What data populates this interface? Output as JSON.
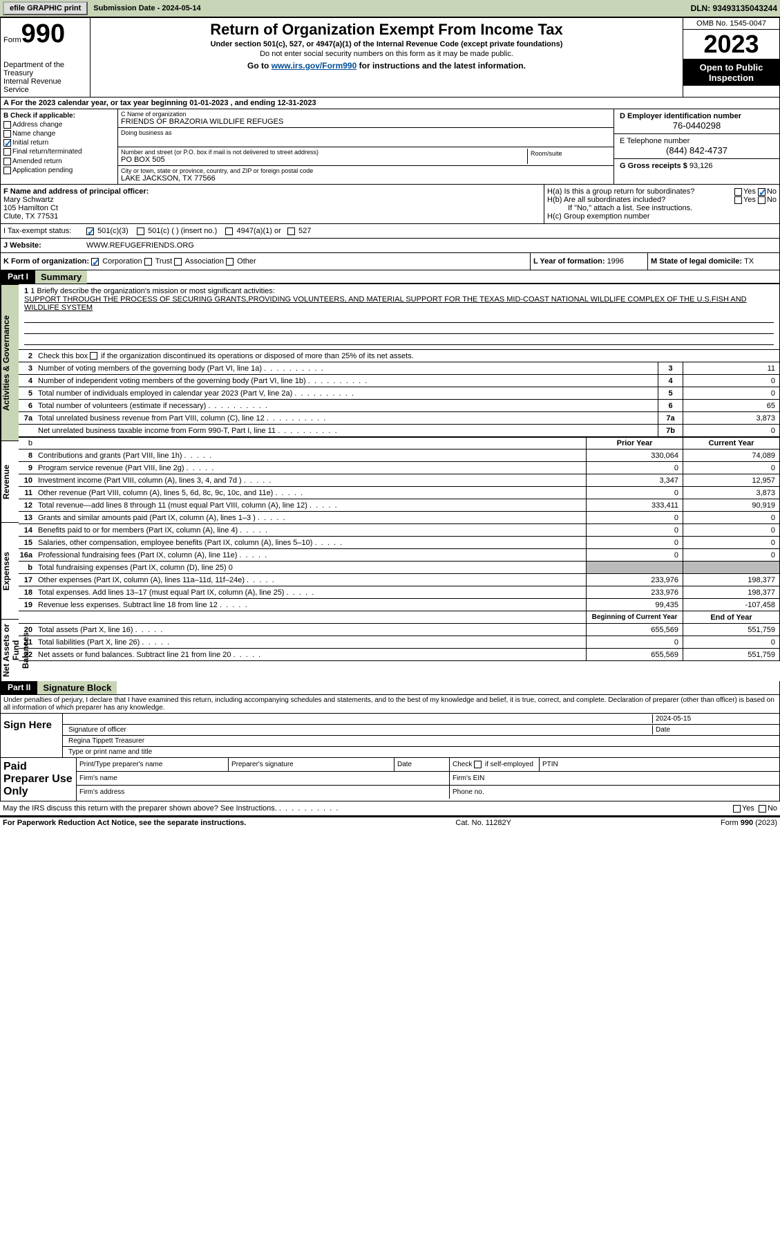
{
  "topbar": {
    "btn1": "efile GRAPHIC print",
    "submission_label": "Submission Date - 2024-05-14",
    "dln": "DLN: 93493135043244"
  },
  "header": {
    "form_word": "Form",
    "form_num": "990",
    "title": "Return of Organization Exempt From Income Tax",
    "subtitle": "Under section 501(c), 527, or 4947(a)(1) of the Internal Revenue Code (except private foundations)",
    "note": "Do not enter social security numbers on this form as it may be made public.",
    "goto_pre": "Go to ",
    "goto_link": "www.irs.gov/Form990",
    "goto_post": " for instructions and the latest information.",
    "dept": "Department of the Treasury\nInternal Revenue Service",
    "omb": "OMB No. 1545-0047",
    "year": "2023",
    "open": "Open to Public Inspection"
  },
  "line_a": "A For the 2023 calendar year, or tax year beginning 01-01-2023    , and ending 12-31-2023",
  "box_b": {
    "title": "B Check if applicable:",
    "items": [
      {
        "label": "Address change",
        "checked": false
      },
      {
        "label": "Name change",
        "checked": false
      },
      {
        "label": "Initial return",
        "checked": true
      },
      {
        "label": "Final return/terminated",
        "checked": false
      },
      {
        "label": "Amended return",
        "checked": false
      },
      {
        "label": "Application pending",
        "checked": false
      }
    ]
  },
  "box_c": {
    "name_label": "C Name of organization",
    "name": "FRIENDS OF BRAZORIA WILDLIFE REFUGES",
    "dba_label": "Doing business as",
    "addr_label": "Number and street (or P.O. box if mail is not delivered to street address)",
    "addr": "PO BOX 505",
    "room_label": "Room/suite",
    "city_label": "City or town, state or province, country, and ZIP or foreign postal code",
    "city": "LAKE JACKSON, TX  77566"
  },
  "box_d": {
    "label": "D Employer identification number",
    "val": "76-0440298"
  },
  "box_e": {
    "label": "E Telephone number",
    "val": "(844) 842-4737"
  },
  "box_g": {
    "label": "G Gross receipts $ ",
    "val": "93,126"
  },
  "box_f": {
    "label": "F  Name and address of principal officer:",
    "name": "Mary Schwartz",
    "addr1": "105 Hamilton Ct",
    "addr2": "Clute, TX  77531"
  },
  "box_h": {
    "a": "H(a)  Is this a group return for subordinates?",
    "b": "H(b)  Are all subordinates included?",
    "b_note": "If \"No,\" attach a list. See instructions.",
    "c": "H(c)  Group exemption number"
  },
  "box_i": {
    "label": "I  Tax-exempt status:",
    "opts": [
      "501(c)(3)",
      "501(c) (  ) (insert no.)",
      "4947(a)(1) or",
      "527"
    ]
  },
  "box_j": {
    "label": "J  Website:",
    "val": "WWW.REFUGEFRIENDS.ORG"
  },
  "box_k": {
    "label": "K Form of organization:",
    "opts": [
      "Corporation",
      "Trust",
      "Association",
      "Other"
    ]
  },
  "box_l": {
    "label": "L Year of formation: ",
    "val": "1996"
  },
  "box_m": {
    "label": "M State of legal domicile: ",
    "val": "TX"
  },
  "yes": "Yes",
  "no": "No",
  "part1": {
    "hdr": "Part I",
    "title": "Summary",
    "sections": {
      "ag": "Activities & Governance",
      "rev": "Revenue",
      "exp": "Expenses",
      "net": "Net Assets or Fund Balances"
    },
    "mission_label": "1  Briefly describe the organization's mission or most significant activities:",
    "mission": "SUPPORT THROUGH THE PROCESS OF SECURING GRANTS,PROVIDING VOLUNTEERS, AND MATERIAL SUPPORT FOR THE TEXAS MID-COAST NATIONAL WILDLIFE COMPLEX OF THE U.S.FISH AND WILDLIFE SYSTEM",
    "line2": "Check this box        if the organization discontinued its operations or disposed of more than 25% of its net assets.",
    "lines_ag": [
      {
        "n": "3",
        "d": "Number of voting members of the governing body (Part VI, line 1a)",
        "c": "3",
        "v": "11"
      },
      {
        "n": "4",
        "d": "Number of independent voting members of the governing body (Part VI, line 1b)",
        "c": "4",
        "v": "0"
      },
      {
        "n": "5",
        "d": "Total number of individuals employed in calendar year 2023 (Part V, line 2a)",
        "c": "5",
        "v": "0"
      },
      {
        "n": "6",
        "d": "Total number of volunteers (estimate if necessary)",
        "c": "6",
        "v": "65"
      },
      {
        "n": "7a",
        "d": "Total unrelated business revenue from Part VIII, column (C), line 12",
        "c": "7a",
        "v": "3,873"
      },
      {
        "n": "",
        "d": "Net unrelated business taxable income from Form 990-T, Part I, line 11",
        "c": "7b",
        "v": "0"
      }
    ],
    "hdr_prior": "Prior Year",
    "hdr_curr": "Current Year",
    "lines_rev": [
      {
        "n": "8",
        "d": "Contributions and grants (Part VIII, line 1h)",
        "p": "330,064",
        "c": "74,089"
      },
      {
        "n": "9",
        "d": "Program service revenue (Part VIII, line 2g)",
        "p": "0",
        "c": "0"
      },
      {
        "n": "10",
        "d": "Investment income (Part VIII, column (A), lines 3, 4, and 7d )",
        "p": "3,347",
        "c": "12,957"
      },
      {
        "n": "11",
        "d": "Other revenue (Part VIII, column (A), lines 5, 6d, 8c, 9c, 10c, and 11e)",
        "p": "0",
        "c": "3,873"
      },
      {
        "n": "12",
        "d": "Total revenue—add lines 8 through 11 (must equal Part VIII, column (A), line 12)",
        "p": "333,411",
        "c": "90,919"
      }
    ],
    "lines_exp": [
      {
        "n": "13",
        "d": "Grants and similar amounts paid (Part IX, column (A), lines 1–3 )",
        "p": "0",
        "c": "0"
      },
      {
        "n": "14",
        "d": "Benefits paid to or for members (Part IX, column (A), line 4)",
        "p": "0",
        "c": "0"
      },
      {
        "n": "15",
        "d": "Salaries, other compensation, employee benefits (Part IX, column (A), lines 5–10)",
        "p": "0",
        "c": "0"
      },
      {
        "n": "16a",
        "d": "Professional fundraising fees (Part IX, column (A), line 11e)",
        "p": "0",
        "c": "0"
      }
    ],
    "line_b": {
      "n": "b",
      "d": "Total fundraising expenses (Part IX, column (D), line 25) 0"
    },
    "lines_exp2": [
      {
        "n": "17",
        "d": "Other expenses (Part IX, column (A), lines 11a–11d, 11f–24e)",
        "p": "233,976",
        "c": "198,377"
      },
      {
        "n": "18",
        "d": "Total expenses. Add lines 13–17 (must equal Part IX, column (A), line 25)",
        "p": "233,976",
        "c": "198,377"
      },
      {
        "n": "19",
        "d": "Revenue less expenses. Subtract line 18 from line 12",
        "p": "99,435",
        "c": "-107,458"
      }
    ],
    "hdr_beg": "Beginning of Current Year",
    "hdr_end": "End of Year",
    "lines_net": [
      {
        "n": "20",
        "d": "Total assets (Part X, line 16)",
        "p": "655,569",
        "c": "551,759"
      },
      {
        "n": "21",
        "d": "Total liabilities (Part X, line 26)",
        "p": "0",
        "c": "0"
      },
      {
        "n": "22",
        "d": "Net assets or fund balances. Subtract line 21 from line 20",
        "p": "655,569",
        "c": "551,759"
      }
    ]
  },
  "part2": {
    "hdr": "Part II",
    "title": "Signature Block",
    "decl": "Under penalties of perjury, I declare that I have examined this return, including accompanying schedules and statements, and to the best of my knowledge and belief, it is true, correct, and complete. Declaration of preparer (other than officer) is based on all information of which preparer has any knowledge.",
    "sign_here": "Sign Here",
    "sig_officer": "Signature of officer",
    "sig_date": "2024-05-15",
    "date_label": "Date",
    "officer_name": "Regina Tippett Treasurer",
    "type_label": "Type or print name and title",
    "paid": "Paid Preparer Use Only",
    "cols": {
      "print": "Print/Type preparer's name",
      "sig": "Preparer's signature",
      "date": "Date",
      "check": "Check        if self-employed",
      "ptin": "PTIN",
      "firm_name": "Firm's name",
      "firm_ein": "Firm's EIN",
      "firm_addr": "Firm's address",
      "phone": "Phone no."
    }
  },
  "footer": {
    "discuss": "May the IRS discuss this return with the preparer shown above? See Instructions.",
    "paperwork": "For Paperwork Reduction Act Notice, see the separate instructions.",
    "cat": "Cat. No. 11282Y",
    "form": "Form 990 (2023)"
  }
}
